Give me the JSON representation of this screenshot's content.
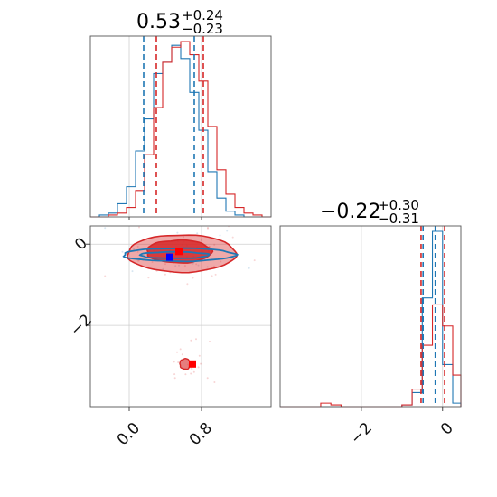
{
  "colors": {
    "blue": "#1f77b4",
    "red": "#d62728",
    "blue_point": "#0000ff",
    "red_point": "#ff0000",
    "grid": "#cfcfcf"
  },
  "chart_data": {
    "type": "corner",
    "parameters": [
      {
        "title": {
          "median": "0.53",
          "upper": "+0.24",
          "lower": "−0.23"
        },
        "range": [
          -0.43,
          1.57
        ],
        "ticks": [
          0.0,
          0.8
        ],
        "tick_labels": [
          "0.0",
          "0.8"
        ],
        "quantiles": {
          "blue": [
            0.16,
            0.72
          ],
          "red": [
            0.3,
            0.82
          ]
        },
        "truth": {
          "blue": 0.45,
          "red": 0.55
        }
      },
      {
        "title": {
          "median": "−0.22",
          "upper": "+0.30",
          "lower": "−0.31"
        },
        "range": [
          -4.0,
          0.45
        ],
        "ticks": [
          -2.0,
          0.0
        ],
        "tick_labels": [
          "−2",
          "0"
        ],
        "quantiles": {
          "blue": [
            -0.48,
            -0.18
          ],
          "red": [
            -0.53,
            0.05
          ]
        },
        "truth": {
          "blue": -0.32,
          "red": -0.18
        }
      }
    ],
    "marginal_hist_1": {
      "bin_edges": [
        -0.43,
        -0.33,
        -0.23,
        -0.13,
        -0.03,
        0.07,
        0.17,
        0.27,
        0.37,
        0.47,
        0.57,
        0.67,
        0.77,
        0.87,
        0.97,
        1.07,
        1.17,
        1.27,
        1.37,
        1.47,
        1.57
      ],
      "series": [
        {
          "color": "blue",
          "counts": [
            0,
            1,
            2,
            7,
            16,
            35,
            52,
            76,
            82,
            91,
            84,
            66,
            46,
            24,
            10,
            3,
            1,
            0,
            0,
            0
          ]
        },
        {
          "color": "red",
          "counts": [
            0,
            0,
            1,
            2,
            5,
            14,
            33,
            58,
            82,
            90,
            93,
            86,
            72,
            48,
            25,
            12,
            5,
            2,
            1,
            0
          ]
        }
      ]
    },
    "marginal_hist_2": {
      "bin_edges": [
        -4.0,
        -3.75,
        -3.5,
        -3.25,
        -3.0,
        -2.75,
        -2.5,
        -2.25,
        -2.0,
        -1.75,
        -1.5,
        -1.25,
        -1.0,
        -0.75,
        -0.5,
        -0.25,
        0.0,
        0.25,
        0.45
      ],
      "series": [
        {
          "color": "blue",
          "counts": [
            0,
            0,
            0,
            0,
            0,
            0,
            0,
            0,
            0,
            0,
            0,
            0,
            1,
            8,
            62,
            100,
            24,
            2
          ]
        },
        {
          "color": "red",
          "counts": [
            0,
            0,
            0,
            0,
            2,
            1,
            0,
            0,
            0,
            0,
            0,
            0,
            1,
            10,
            35,
            58,
            46,
            18
          ]
        }
      ]
    },
    "contours_2d": {
      "red": [
        {
          "level": "outer",
          "cx": 0.58,
          "cy": -0.23,
          "rx": 0.6,
          "ry": 0.46
        },
        {
          "level": "inner",
          "cx": 0.55,
          "cy": -0.18,
          "rx": 0.36,
          "ry": 0.28
        },
        {
          "level": "island",
          "cx": 0.62,
          "cy": -2.95,
          "rx": 0.06,
          "ry": 0.13
        }
      ],
      "blue": [
        {
          "level": "outer",
          "cx": 0.55,
          "cy": -0.26,
          "rx": 0.62,
          "ry": 0.16
        },
        {
          "level": "inner",
          "cx": 0.5,
          "cy": -0.27,
          "rx": 0.38,
          "ry": 0.08
        }
      ]
    },
    "points_2d": {
      "blue": {
        "x": 0.45,
        "y": -0.32
      },
      "red": {
        "x": 0.55,
        "y": -0.18
      },
      "red_secondary": {
        "x": 0.7,
        "y": -2.95
      }
    }
  }
}
